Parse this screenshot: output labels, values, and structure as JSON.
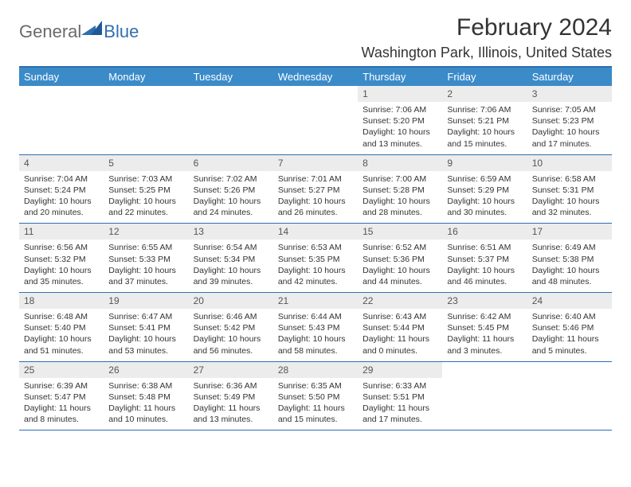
{
  "brand": {
    "part1": "General",
    "part2": "Blue",
    "logo_color": "#2f6fb0",
    "text_gray": "#6a6a6a"
  },
  "title": "February 2024",
  "location": "Washington Park, Illinois, United States",
  "colors": {
    "header_bg": "#3b8bc9",
    "header_text": "#ffffff",
    "rule": "#2f6fb0",
    "daynum_bg": "#ececec",
    "body_text": "#333333"
  },
  "typography": {
    "title_fontsize": 30,
    "location_fontsize": 18,
    "dayheader_fontsize": 13,
    "daynum_fontsize": 12,
    "body_fontsize": 10.5
  },
  "day_headers": [
    "Sunday",
    "Monday",
    "Tuesday",
    "Wednesday",
    "Thursday",
    "Friday",
    "Saturday"
  ],
  "weeks": [
    [
      {
        "n": "",
        "lines": [
          "",
          "",
          ""
        ]
      },
      {
        "n": "",
        "lines": [
          "",
          "",
          ""
        ]
      },
      {
        "n": "",
        "lines": [
          "",
          "",
          ""
        ]
      },
      {
        "n": "",
        "lines": [
          "",
          "",
          ""
        ]
      },
      {
        "n": "1",
        "lines": [
          "Sunrise: 7:06 AM",
          "Sunset: 5:20 PM",
          "Daylight: 10 hours and 13 minutes."
        ]
      },
      {
        "n": "2",
        "lines": [
          "Sunrise: 7:06 AM",
          "Sunset: 5:21 PM",
          "Daylight: 10 hours and 15 minutes."
        ]
      },
      {
        "n": "3",
        "lines": [
          "Sunrise: 7:05 AM",
          "Sunset: 5:23 PM",
          "Daylight: 10 hours and 17 minutes."
        ]
      }
    ],
    [
      {
        "n": "4",
        "lines": [
          "Sunrise: 7:04 AM",
          "Sunset: 5:24 PM",
          "Daylight: 10 hours and 20 minutes."
        ]
      },
      {
        "n": "5",
        "lines": [
          "Sunrise: 7:03 AM",
          "Sunset: 5:25 PM",
          "Daylight: 10 hours and 22 minutes."
        ]
      },
      {
        "n": "6",
        "lines": [
          "Sunrise: 7:02 AM",
          "Sunset: 5:26 PM",
          "Daylight: 10 hours and 24 minutes."
        ]
      },
      {
        "n": "7",
        "lines": [
          "Sunrise: 7:01 AM",
          "Sunset: 5:27 PM",
          "Daylight: 10 hours and 26 minutes."
        ]
      },
      {
        "n": "8",
        "lines": [
          "Sunrise: 7:00 AM",
          "Sunset: 5:28 PM",
          "Daylight: 10 hours and 28 minutes."
        ]
      },
      {
        "n": "9",
        "lines": [
          "Sunrise: 6:59 AM",
          "Sunset: 5:29 PM",
          "Daylight: 10 hours and 30 minutes."
        ]
      },
      {
        "n": "10",
        "lines": [
          "Sunrise: 6:58 AM",
          "Sunset: 5:31 PM",
          "Daylight: 10 hours and 32 minutes."
        ]
      }
    ],
    [
      {
        "n": "11",
        "lines": [
          "Sunrise: 6:56 AM",
          "Sunset: 5:32 PM",
          "Daylight: 10 hours and 35 minutes."
        ]
      },
      {
        "n": "12",
        "lines": [
          "Sunrise: 6:55 AM",
          "Sunset: 5:33 PM",
          "Daylight: 10 hours and 37 minutes."
        ]
      },
      {
        "n": "13",
        "lines": [
          "Sunrise: 6:54 AM",
          "Sunset: 5:34 PM",
          "Daylight: 10 hours and 39 minutes."
        ]
      },
      {
        "n": "14",
        "lines": [
          "Sunrise: 6:53 AM",
          "Sunset: 5:35 PM",
          "Daylight: 10 hours and 42 minutes."
        ]
      },
      {
        "n": "15",
        "lines": [
          "Sunrise: 6:52 AM",
          "Sunset: 5:36 PM",
          "Daylight: 10 hours and 44 minutes."
        ]
      },
      {
        "n": "16",
        "lines": [
          "Sunrise: 6:51 AM",
          "Sunset: 5:37 PM",
          "Daylight: 10 hours and 46 minutes."
        ]
      },
      {
        "n": "17",
        "lines": [
          "Sunrise: 6:49 AM",
          "Sunset: 5:38 PM",
          "Daylight: 10 hours and 48 minutes."
        ]
      }
    ],
    [
      {
        "n": "18",
        "lines": [
          "Sunrise: 6:48 AM",
          "Sunset: 5:40 PM",
          "Daylight: 10 hours and 51 minutes."
        ]
      },
      {
        "n": "19",
        "lines": [
          "Sunrise: 6:47 AM",
          "Sunset: 5:41 PM",
          "Daylight: 10 hours and 53 minutes."
        ]
      },
      {
        "n": "20",
        "lines": [
          "Sunrise: 6:46 AM",
          "Sunset: 5:42 PM",
          "Daylight: 10 hours and 56 minutes."
        ]
      },
      {
        "n": "21",
        "lines": [
          "Sunrise: 6:44 AM",
          "Sunset: 5:43 PM",
          "Daylight: 10 hours and 58 minutes."
        ]
      },
      {
        "n": "22",
        "lines": [
          "Sunrise: 6:43 AM",
          "Sunset: 5:44 PM",
          "Daylight: 11 hours and 0 minutes."
        ]
      },
      {
        "n": "23",
        "lines": [
          "Sunrise: 6:42 AM",
          "Sunset: 5:45 PM",
          "Daylight: 11 hours and 3 minutes."
        ]
      },
      {
        "n": "24",
        "lines": [
          "Sunrise: 6:40 AM",
          "Sunset: 5:46 PM",
          "Daylight: 11 hours and 5 minutes."
        ]
      }
    ],
    [
      {
        "n": "25",
        "lines": [
          "Sunrise: 6:39 AM",
          "Sunset: 5:47 PM",
          "Daylight: 11 hours and 8 minutes."
        ]
      },
      {
        "n": "26",
        "lines": [
          "Sunrise: 6:38 AM",
          "Sunset: 5:48 PM",
          "Daylight: 11 hours and 10 minutes."
        ]
      },
      {
        "n": "27",
        "lines": [
          "Sunrise: 6:36 AM",
          "Sunset: 5:49 PM",
          "Daylight: 11 hours and 13 minutes."
        ]
      },
      {
        "n": "28",
        "lines": [
          "Sunrise: 6:35 AM",
          "Sunset: 5:50 PM",
          "Daylight: 11 hours and 15 minutes."
        ]
      },
      {
        "n": "29",
        "lines": [
          "Sunrise: 6:33 AM",
          "Sunset: 5:51 PM",
          "Daylight: 11 hours and 17 minutes."
        ]
      },
      {
        "n": "",
        "lines": [
          "",
          "",
          ""
        ]
      },
      {
        "n": "",
        "lines": [
          "",
          "",
          ""
        ]
      }
    ]
  ]
}
